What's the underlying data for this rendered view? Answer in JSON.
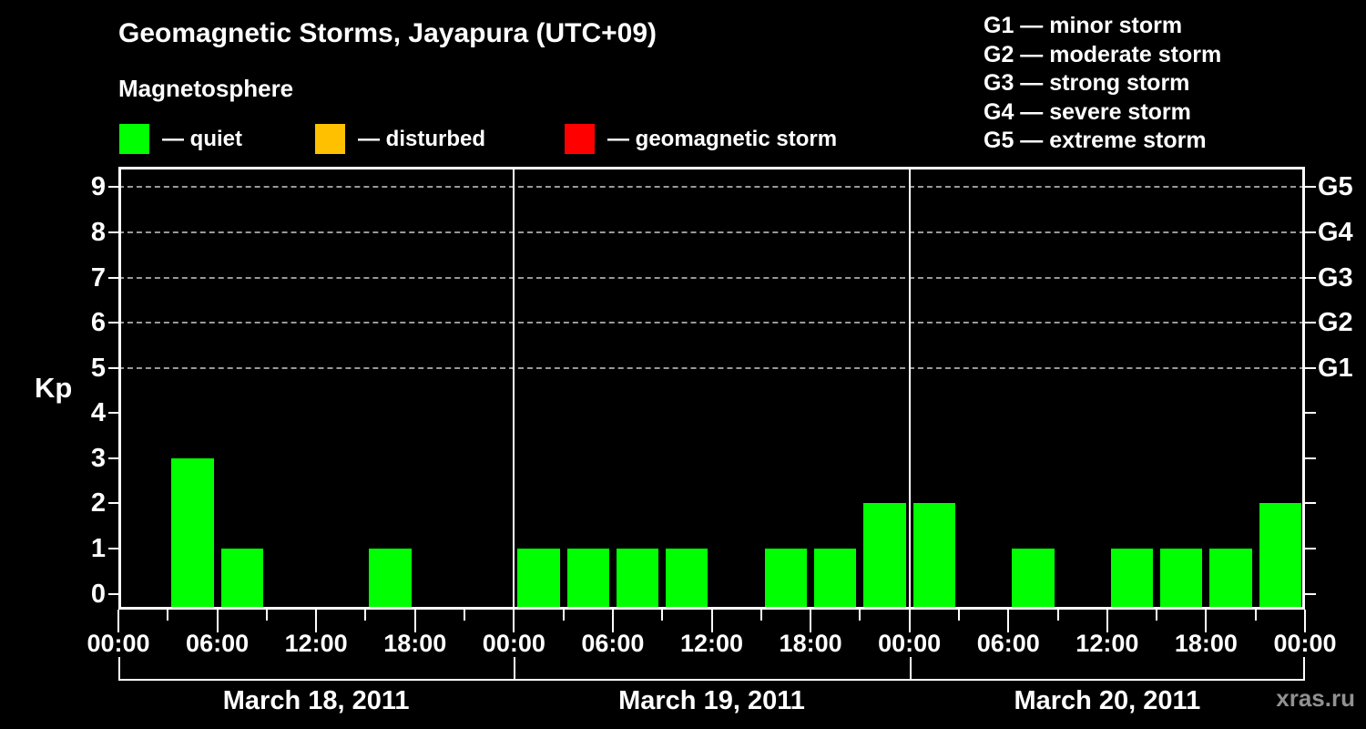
{
  "title": "Geomagnetic Storms, Jayapura (UTC+09)",
  "subtitle": "Magnetosphere",
  "kp_legend": [
    {
      "name": "quiet",
      "label": "— quiet",
      "color": "#00ff00",
      "x": 131
    },
    {
      "name": "disturbed",
      "label": "— disturbed",
      "color": "#ffc000",
      "x": 346
    },
    {
      "name": "geomagnetic-storm",
      "label": "— geomagnetic storm",
      "color": "#ff0000",
      "x": 620
    }
  ],
  "g_legend": [
    "G1 — minor storm",
    "G2 — moderate storm",
    "G3 — strong storm",
    "G4 — severe storm",
    "G5 — extreme storm"
  ],
  "watermark": "xras.ru",
  "chart_data": {
    "type": "bar",
    "ylabel": "Kp",
    "ylim": [
      -0.35,
      9.45
    ],
    "y_ticks": [
      0,
      1,
      2,
      3,
      4,
      5,
      6,
      7,
      8,
      9
    ],
    "gridlines_at_kp": [
      5,
      6,
      7,
      8,
      9
    ],
    "right_axis_labels": [
      {
        "kp": 5,
        "label": "G1"
      },
      {
        "kp": 6,
        "label": "G2"
      },
      {
        "kp": 7,
        "label": "G3"
      },
      {
        "kp": 8,
        "label": "G4"
      },
      {
        "kp": 9,
        "label": "G5"
      }
    ],
    "slot_hours": 3,
    "days": [
      {
        "date": "March 18, 2011",
        "kp_values": [
          0,
          3,
          1,
          0,
          0,
          1,
          0,
          0
        ]
      },
      {
        "date": "March 19, 2011",
        "kp_values": [
          1,
          1,
          1,
          1,
          0,
          1,
          1,
          2
        ]
      },
      {
        "date": "March 20, 2011",
        "kp_values": [
          2,
          0,
          1,
          0,
          1,
          1,
          1,
          2
        ]
      }
    ],
    "x_tick_labels_6h": [
      "00:00",
      "06:00",
      "12:00",
      "18:00",
      "00:00",
      "06:00",
      "12:00",
      "18:00",
      "00:00",
      "06:00",
      "12:00",
      "18:00",
      "00:00"
    ],
    "bar_color": "#00ff00",
    "grid_color": "#999999",
    "axis_color": "#ffffff"
  }
}
